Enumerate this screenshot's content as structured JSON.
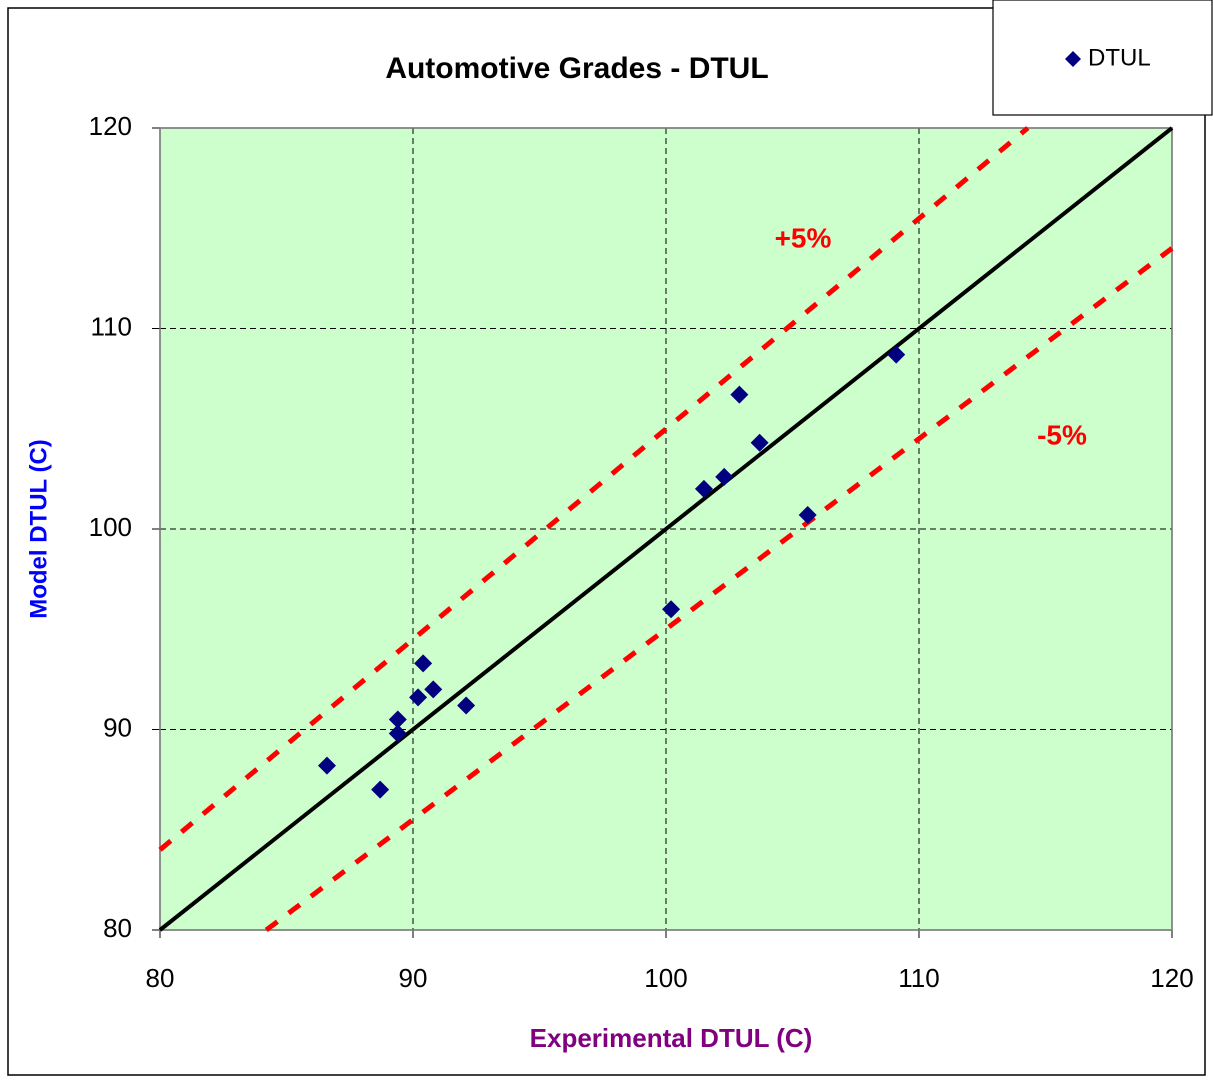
{
  "chart_data": {
    "type": "scatter",
    "title": "Automotive Grades - DTUL",
    "x_label": "Experimental DTUL (C)",
    "y_label": "Model DTUL (C)",
    "xlim": [
      80,
      120
    ],
    "ylim": [
      80,
      120
    ],
    "xticks": [
      80,
      90,
      100,
      110,
      120
    ],
    "yticks": [
      80,
      90,
      100,
      110,
      120
    ],
    "grid": true,
    "background": "#ccffcc",
    "legend": "top-right",
    "series": [
      {
        "name": "DTUL",
        "color": "#000080",
        "x": [
          86.6,
          88.7,
          89.4,
          89.4,
          90.2,
          90.4,
          90.8,
          92.1,
          100.2,
          101.5,
          102.3,
          102.9,
          103.7,
          105.6,
          109.1
        ],
        "values": [
          88.2,
          87.0,
          89.8,
          90.5,
          91.6,
          93.3,
          92.0,
          91.2,
          96.0,
          102.0,
          102.6,
          106.7,
          104.3,
          100.7,
          108.7
        ]
      }
    ],
    "reference_lines": [
      {
        "x": [
          80,
          120
        ],
        "values": [
          80,
          120
        ],
        "color": "#000000",
        "dashed": false
      },
      {
        "x": [
          80,
          114.3
        ],
        "values": [
          84,
          120
        ],
        "color": "#ff0000",
        "dashed": true
      },
      {
        "x": [
          84.2,
          120
        ],
        "values": [
          80,
          114
        ],
        "color": "#ff0000",
        "dashed": true
      }
    ],
    "annotations": [
      {
        "text": "+5%",
        "color": "#ff0000"
      },
      {
        "text": "-5%",
        "color": "#ff0000"
      }
    ]
  }
}
